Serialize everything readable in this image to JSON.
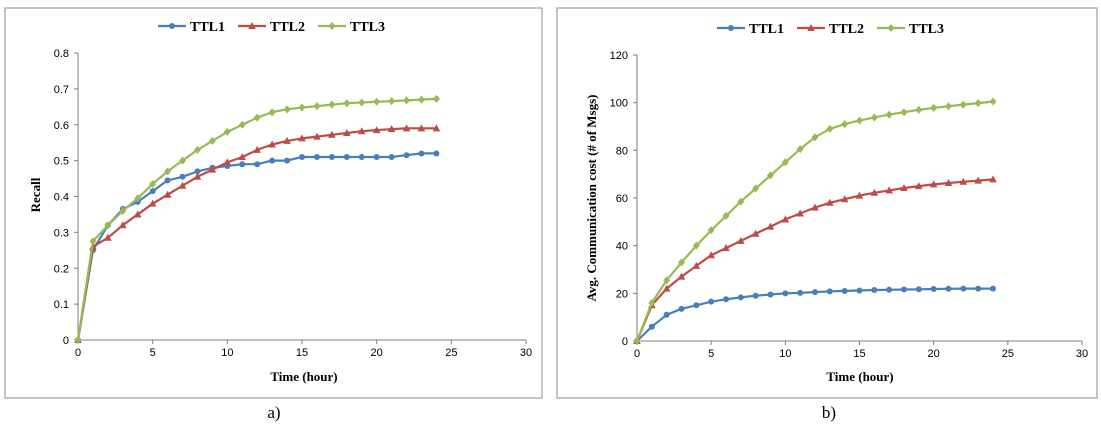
{
  "chart_data": [
    {
      "type": "line",
      "caption": "a)",
      "xlabel": "Time (hour)",
      "ylabel": "Recall",
      "xlim": [
        0,
        30
      ],
      "ylim": [
        0,
        0.8
      ],
      "xticks": [
        "0",
        "5",
        "10",
        "15",
        "20",
        "25",
        "30"
      ],
      "yticks": [
        "0",
        "0.1",
        "0.2",
        "0.3",
        "0.4",
        "0.5",
        "0.6",
        "0.7",
        "0.8"
      ],
      "grid": false,
      "legend": "top",
      "x": [
        0,
        1,
        2,
        3,
        4,
        5,
        6,
        7,
        8,
        9,
        10,
        11,
        12,
        13,
        14,
        15,
        16,
        17,
        18,
        19,
        20,
        21,
        22,
        23,
        24
      ],
      "series": [
        {
          "name": "TTL1",
          "color": "#4a7ebb",
          "marker": "circle",
          "values": [
            0,
            0.25,
            0.32,
            0.365,
            0.385,
            0.415,
            0.445,
            0.455,
            0.47,
            0.48,
            0.485,
            0.49,
            0.49,
            0.5,
            0.5,
            0.51,
            0.51,
            0.51,
            0.51,
            0.51,
            0.51,
            0.51,
            0.515,
            0.52,
            0.52
          ]
        },
        {
          "name": "TTL2",
          "color": "#be4b48",
          "marker": "triangle",
          "values": [
            0,
            0.26,
            0.285,
            0.32,
            0.35,
            0.38,
            0.405,
            0.43,
            0.455,
            0.475,
            0.495,
            0.51,
            0.53,
            0.545,
            0.555,
            0.562,
            0.567,
            0.572,
            0.577,
            0.582,
            0.585,
            0.588,
            0.59,
            0.59,
            0.59
          ]
        },
        {
          "name": "TTL3",
          "color": "#98b954",
          "marker": "diamond",
          "values": [
            0,
            0.275,
            0.32,
            0.36,
            0.395,
            0.435,
            0.47,
            0.5,
            0.53,
            0.555,
            0.58,
            0.6,
            0.62,
            0.635,
            0.643,
            0.648,
            0.652,
            0.656,
            0.66,
            0.662,
            0.664,
            0.666,
            0.668,
            0.67,
            0.672
          ]
        }
      ]
    },
    {
      "type": "line",
      "caption": "b)",
      "xlabel": "Time (hour)",
      "ylabel": "Avg. Communication  cost (# of Msgs)",
      "xlim": [
        0,
        30
      ],
      "ylim": [
        0,
        120
      ],
      "xticks": [
        "0",
        "5",
        "10",
        "15",
        "20",
        "25",
        "30"
      ],
      "yticks": [
        "0",
        "20",
        "40",
        "60",
        "80",
        "100",
        "120"
      ],
      "grid": false,
      "legend": "top",
      "x": [
        0,
        1,
        2,
        3,
        4,
        5,
        6,
        7,
        8,
        9,
        10,
        11,
        12,
        13,
        14,
        15,
        16,
        17,
        18,
        19,
        20,
        21,
        22,
        23,
        24
      ],
      "series": [
        {
          "name": "TTL1",
          "color": "#4a7ebb",
          "marker": "circle",
          "values": [
            0,
            6,
            11,
            13.5,
            15,
            16.5,
            17.5,
            18.3,
            19,
            19.5,
            20,
            20.2,
            20.5,
            20.8,
            21,
            21.2,
            21.4,
            21.5,
            21.6,
            21.7,
            21.8,
            21.9,
            22,
            22,
            22
          ]
        },
        {
          "name": "TTL2",
          "color": "#be4b48",
          "marker": "triangle",
          "values": [
            0,
            15,
            22,
            27,
            31.5,
            36,
            39,
            42,
            45,
            48,
            51,
            53.5,
            56,
            58,
            59.5,
            61,
            62.2,
            63.2,
            64.2,
            65,
            65.7,
            66.3,
            66.8,
            67.3,
            67.8
          ]
        },
        {
          "name": "TTL3",
          "color": "#98b954",
          "marker": "diamond",
          "values": [
            0,
            16,
            25.5,
            33,
            40,
            46.5,
            52.5,
            58.5,
            64,
            69.5,
            75,
            80.5,
            85.5,
            89,
            91,
            92.5,
            93.8,
            95,
            96,
            97,
            97.8,
            98.5,
            99.2,
            99.8,
            100.5
          ]
        }
      ]
    }
  ]
}
